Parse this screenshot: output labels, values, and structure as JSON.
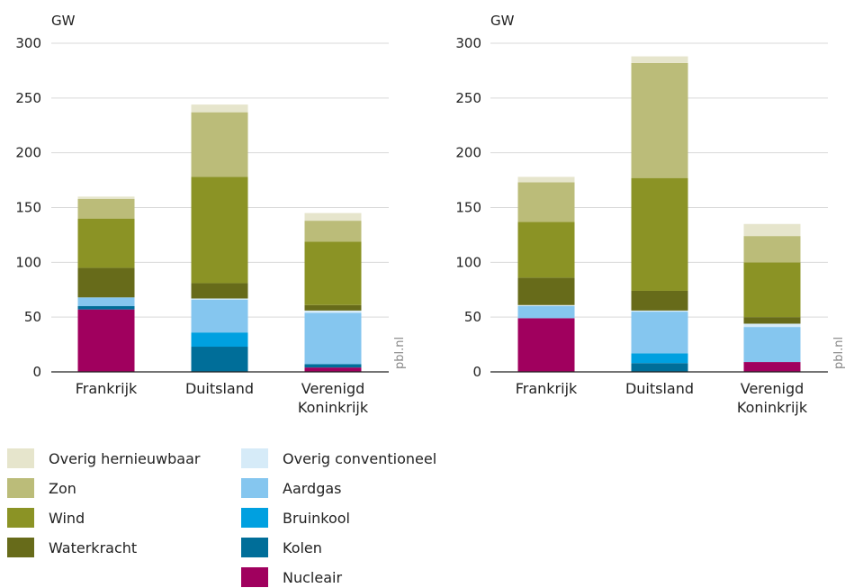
{
  "chart_data": [
    {
      "type": "bar",
      "stacked": true,
      "ylabel": "GW",
      "ylim": [
        0,
        300
      ],
      "yticks": [
        0,
        50,
        100,
        150,
        200,
        250,
        300
      ],
      "grid": true,
      "categories": [
        "Frankrijk",
        "Duitsland",
        "Verenigd Koninkrijk"
      ],
      "series": [
        {
          "name": "Nucleair",
          "values": [
            57,
            0,
            4
          ]
        },
        {
          "name": "Kolen",
          "values": [
            3,
            23,
            3
          ]
        },
        {
          "name": "Bruinkool",
          "values": [
            0,
            13,
            0
          ]
        },
        {
          "name": "Aardgas",
          "values": [
            8,
            30,
            47
          ]
        },
        {
          "name": "Overig conventioneel",
          "values": [
            0,
            1,
            2
          ]
        },
        {
          "name": "Waterkracht",
          "values": [
            27,
            14,
            5
          ]
        },
        {
          "name": "Wind",
          "values": [
            45,
            97,
            58
          ]
        },
        {
          "name": "Zon",
          "values": [
            18,
            59,
            19
          ]
        },
        {
          "name": "Overig hernieuwbaar",
          "values": [
            2,
            7,
            7
          ]
        }
      ]
    },
    {
      "type": "bar",
      "stacked": true,
      "ylabel": "GW",
      "ylim": [
        0,
        300
      ],
      "yticks": [
        0,
        50,
        100,
        150,
        200,
        250,
        300
      ],
      "grid": true,
      "categories": [
        "Frankrijk",
        "Duitsland",
        "Verenigd Koninkrijk"
      ],
      "series": [
        {
          "name": "Nucleair",
          "values": [
            49,
            0,
            9
          ]
        },
        {
          "name": "Kolen",
          "values": [
            0,
            8,
            0
          ]
        },
        {
          "name": "Bruinkool",
          "values": [
            0,
            9,
            0
          ]
        },
        {
          "name": "Aardgas",
          "values": [
            11,
            38,
            32
          ]
        },
        {
          "name": "Overig conventioneel",
          "values": [
            1,
            1,
            3
          ]
        },
        {
          "name": "Waterkracht",
          "values": [
            25,
            18,
            6
          ]
        },
        {
          "name": "Wind",
          "values": [
            51,
            103,
            50
          ]
        },
        {
          "name": "Zon",
          "values": [
            36,
            105,
            24
          ]
        },
        {
          "name": "Overig hernieuwbaar",
          "values": [
            5,
            6,
            11
          ]
        }
      ]
    }
  ],
  "source": "pbl.nl",
  "colors": {
    "Nucleair": "#a0005e",
    "Kolen": "#006e99",
    "Bruinkool": "#00a0e0",
    "Aardgas": "#85c6ef",
    "Overig conventioneel": "#d6ebf8",
    "Waterkracht": "#676b1a",
    "Wind": "#8b9325",
    "Zon": "#bbbc79",
    "Overig hernieuwbaar": "#e6e5cc",
    "grid": "#d9d9d9",
    "axis": "#222222"
  },
  "legend": {
    "left": [
      {
        "label": "Overig hernieuwbaar",
        "color": "#e6e5cc"
      },
      {
        "label": "Zon",
        "color": "#bbbc79"
      },
      {
        "label": "Wind",
        "color": "#8b9325"
      },
      {
        "label": "Waterkracht",
        "color": "#676b1a"
      }
    ],
    "right": [
      {
        "label": "Overig conventioneel",
        "color": "#d6ebf8"
      },
      {
        "label": "Aardgas",
        "color": "#85c6ef"
      },
      {
        "label": "Bruinkool",
        "color": "#00a0e0"
      },
      {
        "label": "Kolen",
        "color": "#006e99"
      },
      {
        "label": "Nucleair",
        "color": "#a0005e"
      }
    ]
  }
}
